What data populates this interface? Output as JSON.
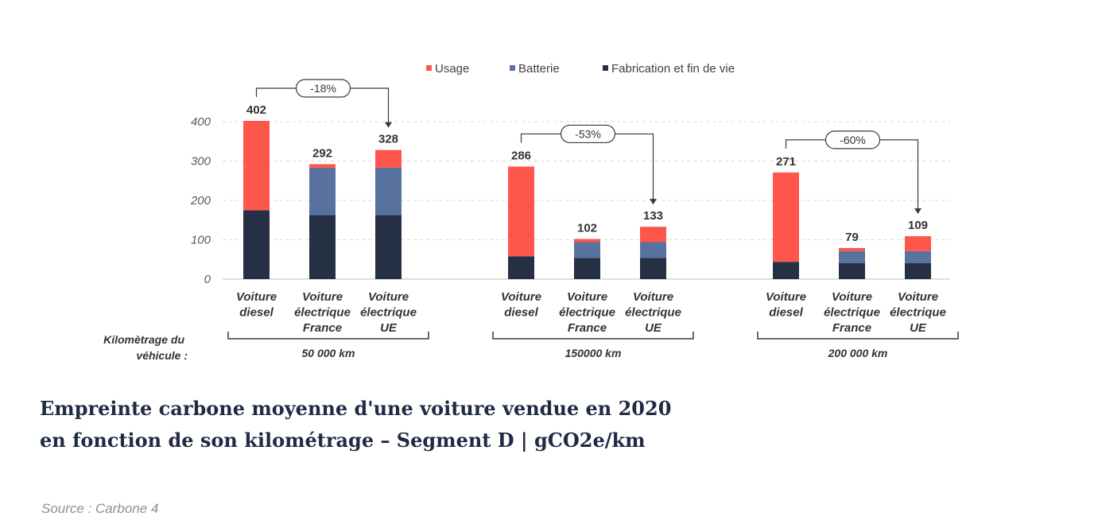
{
  "chart_data": {
    "type": "bar",
    "stacked": true,
    "ylim": [
      0,
      400
    ],
    "yticks": [
      0,
      100,
      200,
      300,
      400
    ],
    "grid": true,
    "legend_position": "top",
    "series": [
      {
        "name": "Fabrication et fin de vie",
        "color": "#253044"
      },
      {
        "name": "Batterie",
        "color": "#5872a0"
      },
      {
        "name": "Usage",
        "color": "#ff564c"
      }
    ],
    "legend_order": [
      "Usage",
      "Batterie",
      "Fabrication et fin de vie"
    ],
    "side_label": [
      "Kilomètrage du",
      "véhicule :"
    ],
    "groups": [
      {
        "label": "50 000 km",
        "change": "-18%",
        "bars": [
          {
            "label": [
              "Voiture",
              "diesel"
            ],
            "values": [
              175,
              0,
              227
            ],
            "total": "402"
          },
          {
            "label": [
              "Voiture",
              "électrique",
              "France"
            ],
            "values": [
              163,
              120,
              9
            ],
            "total": "292"
          },
          {
            "label": [
              "Voiture",
              "électrique",
              "UE"
            ],
            "values": [
              163,
              120,
              45
            ],
            "total": "328"
          }
        ]
      },
      {
        "label": "150000 km",
        "change": "-53%",
        "bars": [
          {
            "label": [
              "Voiture",
              "diesel"
            ],
            "values": [
              58,
              0,
              228
            ],
            "total": "286"
          },
          {
            "label": [
              "Voiture",
              "électrique",
              "France"
            ],
            "values": [
              54,
              40,
              8
            ],
            "total": "102"
          },
          {
            "label": [
              "Voiture",
              "électrique",
              "UE"
            ],
            "values": [
              54,
              40,
              39
            ],
            "total": "133"
          }
        ]
      },
      {
        "label": "200 000 km",
        "change": "-60%",
        "bars": [
          {
            "label": [
              "Voiture",
              "diesel"
            ],
            "values": [
              44,
              0,
              227
            ],
            "total": "271"
          },
          {
            "label": [
              "Voiture",
              "électrique",
              "France"
            ],
            "values": [
              41,
              30,
              8
            ],
            "total": "79"
          },
          {
            "label": [
              "Voiture",
              "électrique",
              "UE"
            ],
            "values": [
              41,
              30,
              38
            ],
            "total": "109"
          }
        ]
      }
    ]
  },
  "caption": {
    "title": "Empreinte carbone moyenne d'une voiture vendue en 2020 en fonction de son kilométrage – Segment D | gCO2e/km",
    "source": "Source : Carbone 4"
  }
}
